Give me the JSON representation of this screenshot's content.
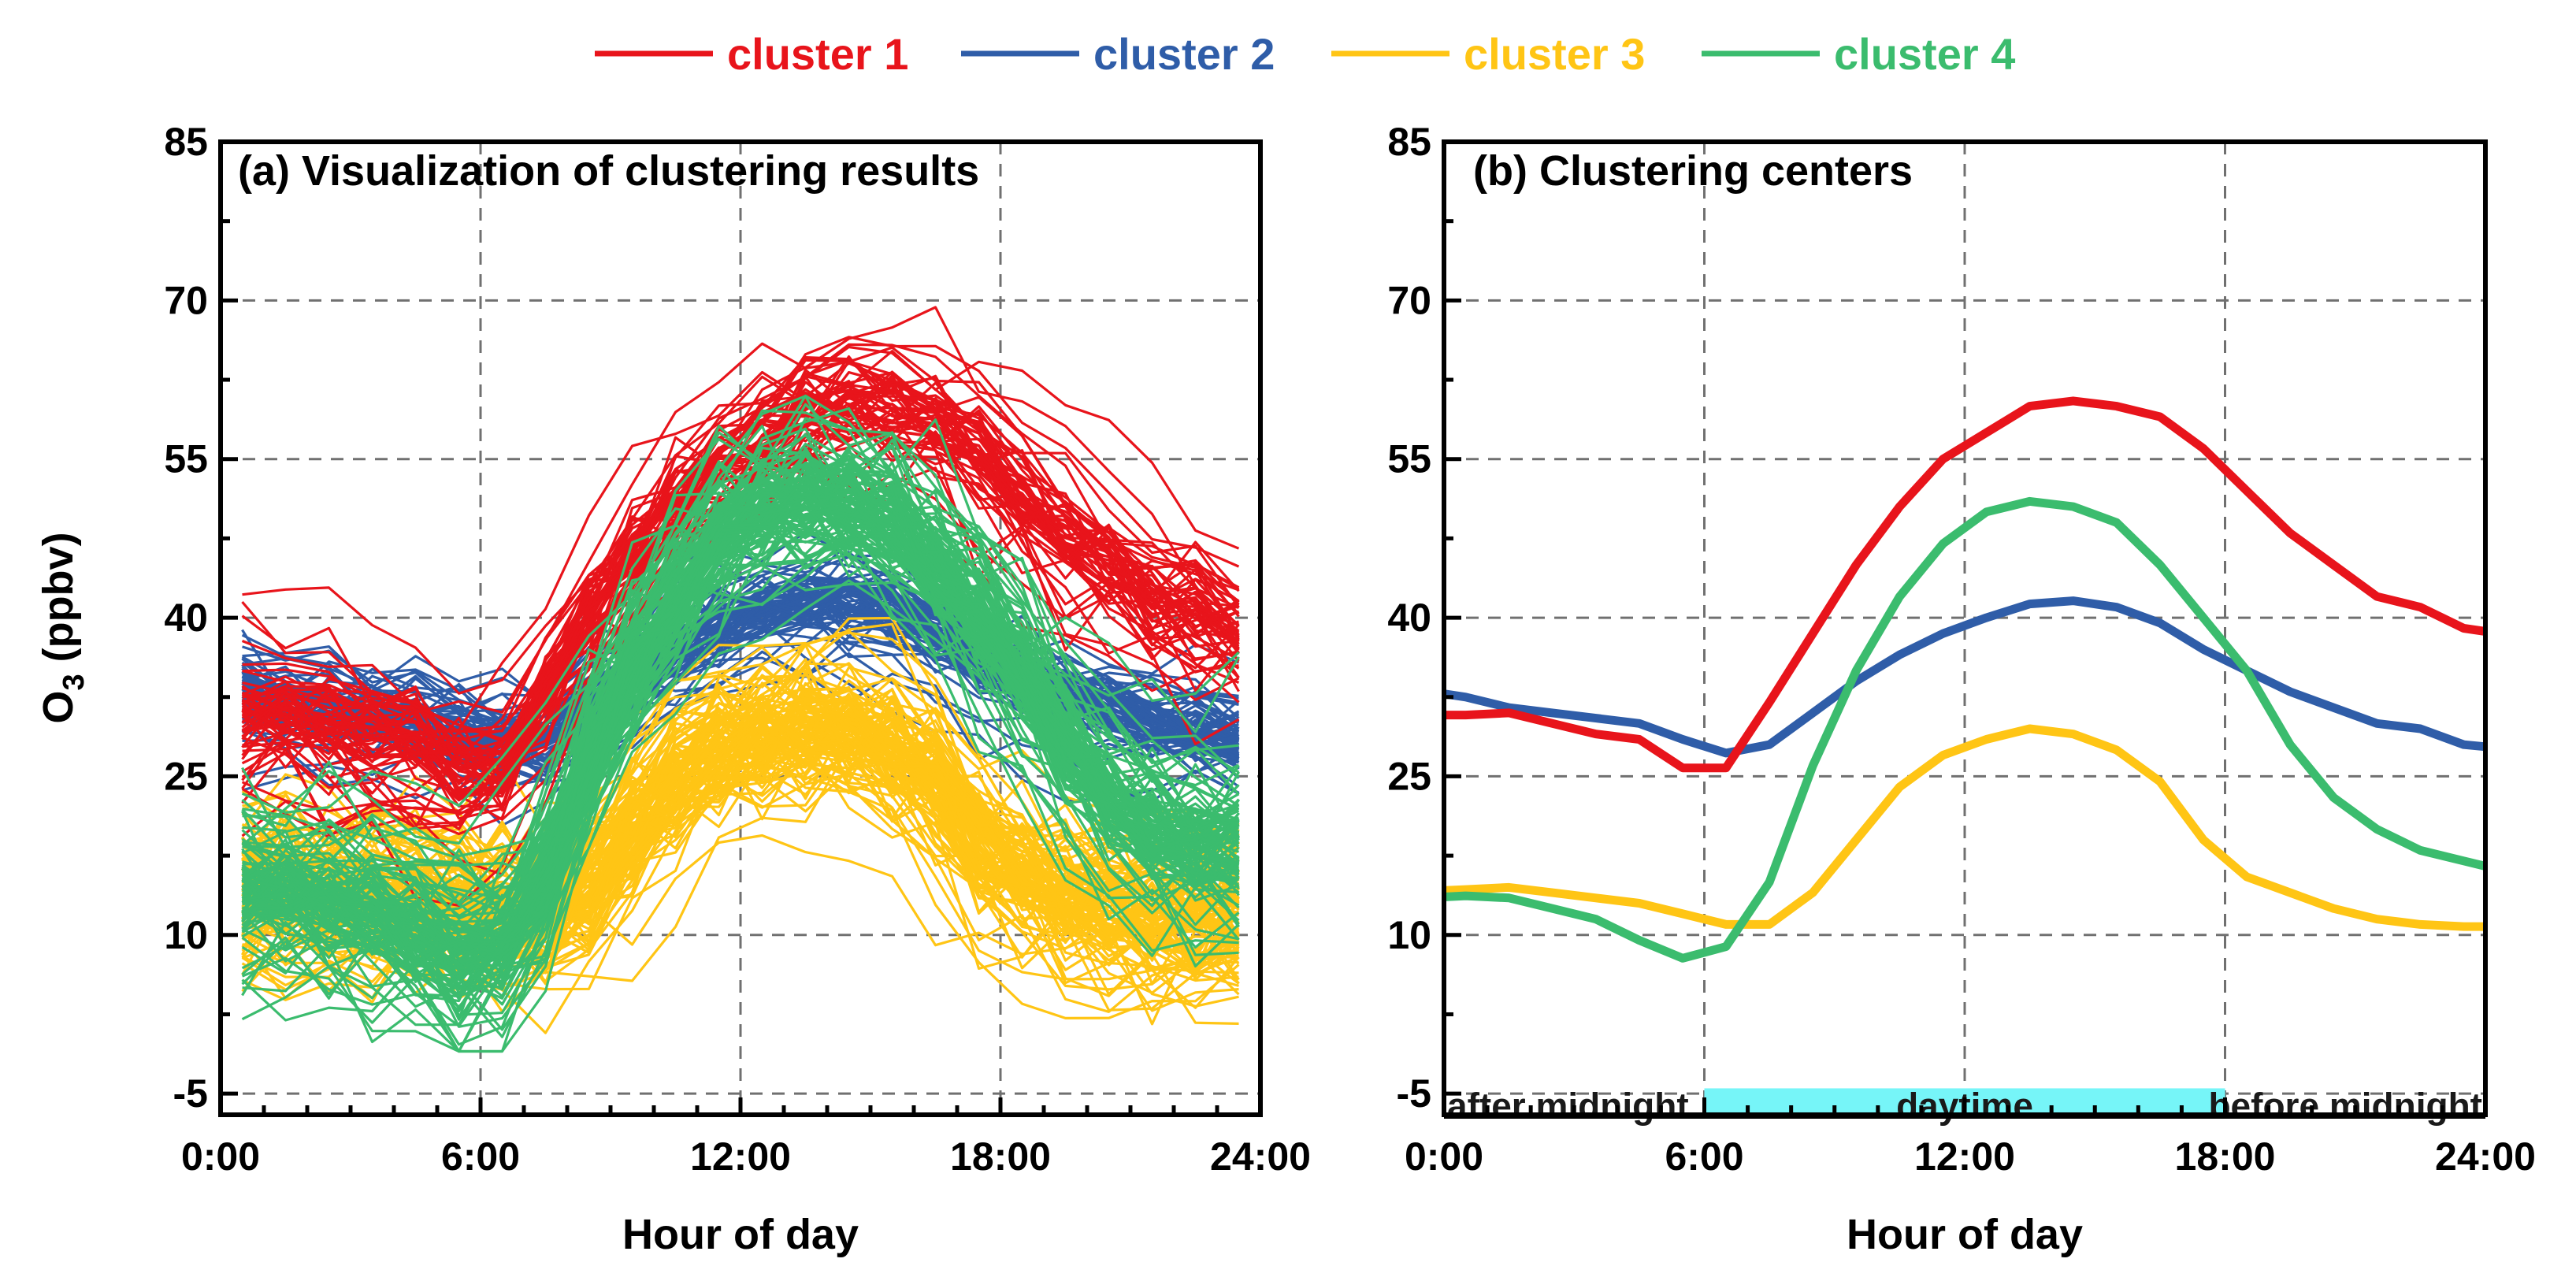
{
  "colors": {
    "cluster1": "#e8141b",
    "cluster2": "#2f5da8",
    "cluster3": "#ffc515",
    "cluster4": "#3bbc6e",
    "night_band": "#c4c4c4",
    "day_band": "#76f5f8"
  },
  "legend": [
    {
      "label": "cluster 1",
      "series": "cluster1"
    },
    {
      "label": "cluster 2",
      "series": "cluster2"
    },
    {
      "label": "cluster 3",
      "series": "cluster3"
    },
    {
      "label": "cluster 4",
      "series": "cluster4"
    }
  ],
  "chart_data": [
    {
      "type": "line",
      "title": "(a) Visualization of clustering results",
      "xlabel": "Hour of day",
      "ylabel": "O3 (ppbv)",
      "xlim": [
        0,
        24
      ],
      "ylim": [
        -7,
        85
      ],
      "xticks": [
        "0:00",
        "6:00",
        "12:00",
        "18:00",
        "24:00"
      ],
      "yticks": [
        "-5",
        "10",
        "25",
        "40",
        "55",
        "70",
        "85"
      ],
      "x": [
        0.5,
        1.5,
        2.5,
        3.5,
        4.5,
        5.5,
        6.5,
        7.5,
        8.5,
        9.5,
        10.5,
        11.5,
        12.5,
        13.5,
        14.5,
        15.5,
        16.5,
        17.5,
        18.5,
        19.5,
        20.5,
        21.5,
        22.5,
        23.5
      ],
      "description_note": "Daily O3 profiles grouped by cluster (hundreds of thin lines); rendered here as families around each cluster center",
      "series": [
        {
          "name": "cluster 1",
          "center": [
            30.5,
            31,
            30,
            29,
            28.5,
            26,
            26,
            33,
            40,
            46,
            51,
            55,
            57.5,
            60,
            60.5,
            60,
            59,
            56,
            52,
            48,
            45,
            42,
            41,
            39
          ],
          "count": 60,
          "spread": 8
        },
        {
          "name": "cluster 2",
          "center": [
            33,
            32,
            31.5,
            31,
            30.5,
            29,
            28,
            28,
            31,
            34,
            37,
            39,
            40.5,
            41.5,
            41.5,
            40.5,
            38.5,
            36,
            34,
            33,
            31.5,
            30,
            29.5,
            28
          ],
          "count": 70,
          "spread": 5
        },
        {
          "name": "cluster 3",
          "center": [
            14,
            14.5,
            14,
            13.5,
            13,
            12,
            11,
            11,
            14,
            19,
            24,
            27,
            28.5,
            29.5,
            29,
            27.5,
            24.5,
            19,
            16,
            14,
            12.5,
            11.5,
            11,
            11
          ],
          "count": 110,
          "spread": 9
        },
        {
          "name": "cluster 4",
          "center": [
            14,
            14,
            13,
            12,
            10,
            8,
            9,
            15,
            26,
            35,
            42,
            47,
            50,
            51,
            50.5,
            49,
            45,
            40,
            35,
            28,
            23,
            20,
            18,
            18.5
          ],
          "count": 110,
          "spread": 9
        }
      ]
    },
    {
      "type": "line",
      "title": "(b) Clustering centers",
      "xlabel": "Hour of day",
      "xlim": [
        0,
        24
      ],
      "ylim": [
        -7,
        85
      ],
      "xticks": [
        "0:00",
        "6:00",
        "12:00",
        "18:00",
        "24:00"
      ],
      "yticks": [
        "-5",
        "10",
        "25",
        "40",
        "55",
        "70",
        "85"
      ],
      "x": [
        0,
        0.5,
        1.5,
        2.5,
        3.5,
        4.5,
        5.5,
        6.5,
        7.5,
        8.5,
        9.5,
        10.5,
        11.5,
        12.5,
        13.5,
        14.5,
        15.5,
        16.5,
        17.5,
        18.5,
        19.5,
        20.5,
        21.5,
        22.5,
        23.5,
        24
      ],
      "series": [
        {
          "name": "cluster 1",
          "values": [
            30.8,
            30.8,
            31,
            30,
            29,
            28.5,
            25.8,
            25.8,
            32,
            38.5,
            45,
            50.5,
            55,
            57.5,
            60,
            60.5,
            60,
            59,
            56,
            52,
            48,
            45,
            42,
            41,
            39,
            38.7
          ]
        },
        {
          "name": "cluster 2",
          "values": [
            32.8,
            32.5,
            31.5,
            31,
            30.5,
            30,
            28.5,
            27.2,
            28,
            31,
            34,
            36.5,
            38.5,
            40,
            41.3,
            41.6,
            41,
            39.5,
            37,
            35,
            33,
            31.5,
            30,
            29.5,
            28,
            27.8
          ]
        },
        {
          "name": "cluster 3",
          "values": [
            14.2,
            14.3,
            14.5,
            14,
            13.5,
            13,
            12,
            11,
            11,
            14,
            19,
            24,
            27,
            28.5,
            29.5,
            29,
            27.5,
            24.5,
            19,
            15.5,
            14,
            12.5,
            11.5,
            11,
            10.8,
            10.8
          ]
        },
        {
          "name": "cluster 4",
          "values": [
            13.6,
            13.7,
            13.5,
            12.5,
            11.5,
            9.5,
            7.8,
            8.9,
            15,
            26,
            35,
            42,
            47,
            50,
            51,
            50.5,
            49,
            45,
            40,
            35,
            28,
            23,
            20,
            18,
            17,
            16.5
          ]
        }
      ],
      "bands": [
        {
          "label": "after midnight",
          "from": 0,
          "to": 6,
          "color": "night_band"
        },
        {
          "label": "daytime",
          "from": 6,
          "to": 18,
          "color": "day_band"
        },
        {
          "label": "before midnight",
          "from": 18,
          "to": 24,
          "color": "night_band"
        }
      ]
    }
  ]
}
